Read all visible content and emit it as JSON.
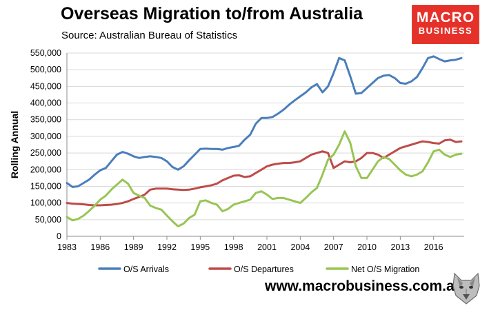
{
  "header": {
    "title": "Overseas Migration to/from Australia",
    "source": "Source: Australian Bureau of Statistics"
  },
  "logo": {
    "line1": "MACRO",
    "line2": "BUSINESS"
  },
  "footer": {
    "website": "www.macrobusiness.com.au"
  },
  "colors": {
    "arrivals": "#4a7ebb",
    "departures": "#be4b48",
    "net": "#98c554",
    "grid": "#d9d9d9",
    "logo_bg": "#e5312a"
  },
  "chart_data": {
    "type": "line",
    "title": "Overseas Migration to/from Australia",
    "ylabel": "Rolling Annual",
    "xlabel": "",
    "xlim": [
      1983,
      2018.75
    ],
    "ylim": [
      0,
      550000
    ],
    "x_ticks": [
      1983,
      1986,
      1989,
      1992,
      1995,
      1998,
      2001,
      2004,
      2007,
      2010,
      2013,
      2016
    ],
    "y_ticks": [
      0,
      50000,
      100000,
      150000,
      200000,
      250000,
      300000,
      350000,
      400000,
      450000,
      500000,
      550000
    ],
    "y_tick_labels": [
      "0",
      "50,000",
      "100,000",
      "150,000",
      "200,000",
      "250,000",
      "300,000",
      "350,000",
      "400,000",
      "450,000",
      "500,000",
      "550,000"
    ],
    "grid": true,
    "legend": "bottom",
    "series": [
      {
        "name": "O/S Arrivals",
        "color": "#4a7ebb",
        "x": [
          1983.0,
          1983.5,
          1984.0,
          1984.5,
          1985.0,
          1985.5,
          1986.0,
          1986.5,
          1987.0,
          1987.5,
          1988.0,
          1988.5,
          1989.0,
          1989.5,
          1990.0,
          1990.5,
          1991.0,
          1991.5,
          1992.0,
          1992.5,
          1993.0,
          1993.5,
          1994.0,
          1994.5,
          1995.0,
          1995.5,
          1996.0,
          1996.5,
          1997.0,
          1997.5,
          1998.0,
          1998.5,
          1999.0,
          1999.5,
          2000.0,
          2000.5,
          2001.0,
          2001.5,
          2002.0,
          2002.5,
          2003.0,
          2003.5,
          2004.0,
          2004.5,
          2005.0,
          2005.5,
          2006.0,
          2006.5,
          2007.0,
          2007.5,
          2008.0,
          2008.5,
          2009.0,
          2009.5,
          2010.0,
          2010.5,
          2011.0,
          2011.5,
          2012.0,
          2012.5,
          2013.0,
          2013.5,
          2014.0,
          2014.5,
          2015.0,
          2015.5,
          2016.0,
          2016.5,
          2017.0,
          2017.5,
          2018.0,
          2018.5
        ],
        "values": [
          160000,
          148000,
          150000,
          160000,
          170000,
          185000,
          198000,
          205000,
          225000,
          245000,
          253000,
          248000,
          240000,
          235000,
          238000,
          240000,
          238000,
          235000,
          225000,
          208000,
          200000,
          210000,
          228000,
          245000,
          262000,
          263000,
          262000,
          262000,
          260000,
          265000,
          268000,
          272000,
          290000,
          305000,
          338000,
          355000,
          355000,
          358000,
          368000,
          380000,
          395000,
          408000,
          420000,
          432000,
          447000,
          457000,
          432000,
          450000,
          490000,
          535000,
          528000,
          480000,
          428000,
          430000,
          445000,
          460000,
          475000,
          482000,
          484000,
          475000,
          460000,
          458000,
          465000,
          478000,
          505000,
          535000,
          540000,
          532000,
          525000,
          528000,
          530000,
          535000
        ]
      },
      {
        "name": "O/S Departures",
        "color": "#be4b48",
        "x": [
          1983.0,
          1983.5,
          1984.0,
          1984.5,
          1985.0,
          1985.5,
          1986.0,
          1986.5,
          1987.0,
          1987.5,
          1988.0,
          1988.5,
          1989.0,
          1989.5,
          1990.0,
          1990.5,
          1991.0,
          1991.5,
          1992.0,
          1992.5,
          1993.0,
          1993.5,
          1994.0,
          1994.5,
          1995.0,
          1995.5,
          1996.0,
          1996.5,
          1997.0,
          1997.5,
          1998.0,
          1998.5,
          1999.0,
          1999.5,
          2000.0,
          2000.5,
          2001.0,
          2001.5,
          2002.0,
          2002.5,
          2003.0,
          2003.5,
          2004.0,
          2004.5,
          2005.0,
          2005.5,
          2006.0,
          2006.5,
          2007.0,
          2007.5,
          2008.0,
          2008.5,
          2009.0,
          2009.5,
          2010.0,
          2010.5,
          2011.0,
          2011.5,
          2012.0,
          2012.5,
          2013.0,
          2013.5,
          2014.0,
          2014.5,
          2015.0,
          2015.5,
          2016.0,
          2016.5,
          2017.0,
          2017.5,
          2018.0,
          2018.5
        ],
        "values": [
          100000,
          98000,
          97000,
          96000,
          94000,
          93000,
          93000,
          94000,
          95000,
          97000,
          100000,
          105000,
          112000,
          118000,
          125000,
          140000,
          143000,
          143000,
          143000,
          141000,
          140000,
          139000,
          140000,
          143000,
          147000,
          150000,
          153000,
          158000,
          168000,
          175000,
          182000,
          183000,
          178000,
          180000,
          190000,
          200000,
          210000,
          215000,
          218000,
          220000,
          220000,
          222000,
          225000,
          235000,
          245000,
          250000,
          255000,
          250000,
          205000,
          215000,
          225000,
          222000,
          225000,
          235000,
          250000,
          250000,
          245000,
          235000,
          245000,
          255000,
          265000,
          270000,
          275000,
          280000,
          285000,
          283000,
          280000,
          278000,
          288000,
          290000,
          283000,
          285000
        ]
      },
      {
        "name": "Net O/S Migration",
        "color": "#98c554",
        "x": [
          1983.0,
          1983.5,
          1984.0,
          1984.5,
          1985.0,
          1985.5,
          1986.0,
          1986.5,
          1987.0,
          1987.5,
          1988.0,
          1988.5,
          1989.0,
          1989.5,
          1990.0,
          1990.5,
          1991.0,
          1991.5,
          1992.0,
          1992.5,
          1993.0,
          1993.5,
          1994.0,
          1994.5,
          1995.0,
          1995.5,
          1996.0,
          1996.5,
          1997.0,
          1997.5,
          1998.0,
          1998.5,
          1999.0,
          1999.5,
          2000.0,
          2000.5,
          2001.0,
          2001.5,
          2002.0,
          2002.5,
          2003.0,
          2003.5,
          2004.0,
          2004.5,
          2005.0,
          2005.5,
          2006.0,
          2006.5,
          2007.0,
          2007.5,
          2008.0,
          2008.5,
          2009.0,
          2009.5,
          2010.0,
          2010.5,
          2011.0,
          2011.5,
          2012.0,
          2012.5,
          2013.0,
          2013.5,
          2014.0,
          2014.5,
          2015.0,
          2015.5,
          2016.0,
          2016.5,
          2017.0,
          2017.5,
          2018.0,
          2018.5
        ],
        "values": [
          58000,
          48000,
          52000,
          62000,
          76000,
          92000,
          110000,
          122000,
          140000,
          155000,
          170000,
          158000,
          130000,
          122000,
          115000,
          92000,
          85000,
          80000,
          62000,
          45000,
          30000,
          38000,
          55000,
          65000,
          105000,
          108000,
          100000,
          95000,
          75000,
          82000,
          95000,
          100000,
          105000,
          110000,
          130000,
          135000,
          125000,
          112000,
          115000,
          115000,
          110000,
          105000,
          100000,
          115000,
          132000,
          145000,
          185000,
          230000,
          245000,
          275000,
          315000,
          280000,
          210000,
          175000,
          175000,
          200000,
          225000,
          238000,
          232000,
          215000,
          198000,
          185000,
          180000,
          185000,
          195000,
          222000,
          255000,
          260000,
          245000,
          238000,
          245000,
          248000
        ]
      }
    ]
  }
}
